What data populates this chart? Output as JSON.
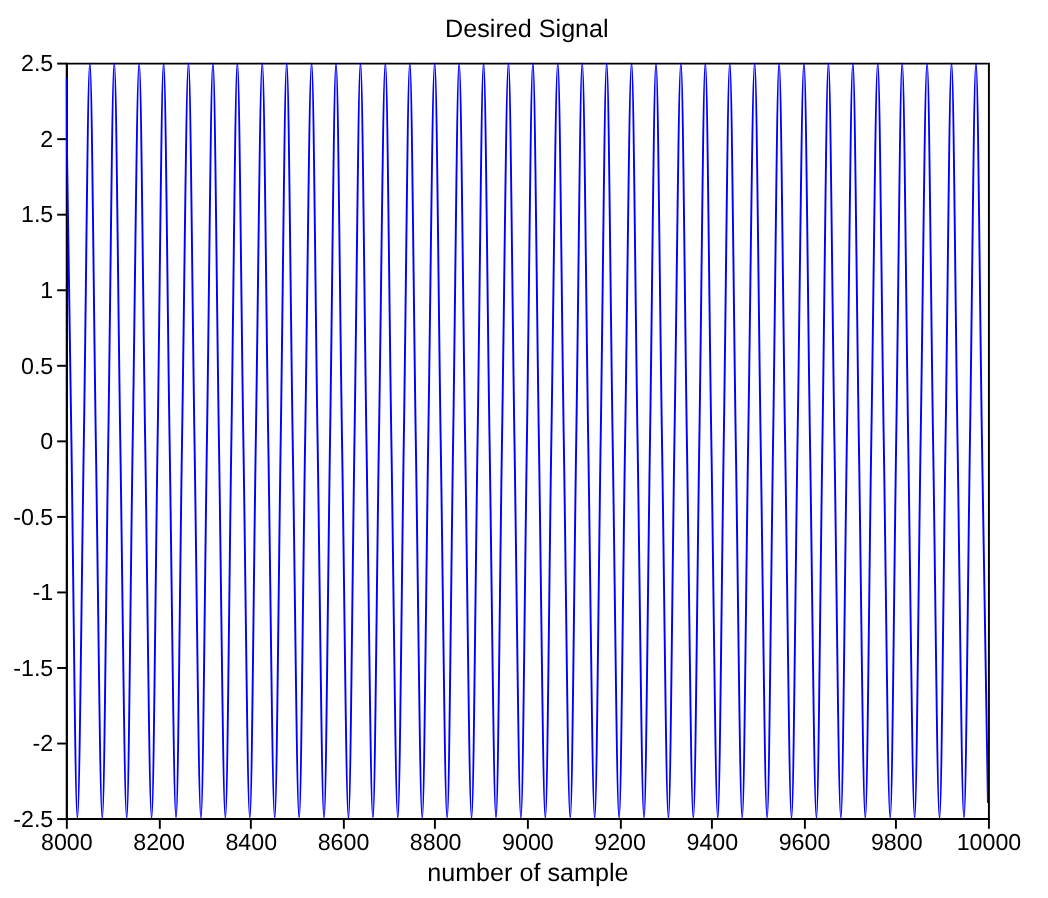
{
  "chart_data": {
    "type": "line",
    "title": "Desired Signal",
    "xlabel": "number of sample",
    "xlim": [
      8000,
      10000
    ],
    "xticks": [
      8000,
      8200,
      8400,
      8600,
      8800,
      9000,
      9200,
      9400,
      9600,
      9800,
      10000
    ],
    "ylim": [
      -2.5,
      2.5
    ],
    "yticks": [
      -2.5,
      -2,
      -1.5,
      -1,
      -0.5,
      0,
      0.5,
      1,
      1.5,
      2,
      2.5
    ],
    "grid": false,
    "legend": false,
    "series": [
      {
        "color": "#0000ff",
        "x": [
          8000,
          8012,
          8025,
          8039,
          8052,
          8065,
          8079,
          8092,
          8105,
          8118,
          8132,
          8145,
          8159,
          8172,
          8186,
          8199,
          8212,
          8225,
          8239,
          8252,
          8266,
          8279,
          8293,
          8306,
          8319,
          8332,
          8346,
          8359,
          8372,
          8385,
          8399,
          8412,
          8426,
          8439,
          8453,
          8466,
          8479,
          8492,
          8506,
          8519,
          8533,
          8546,
          8560,
          8573,
          8586,
          8599,
          8613,
          8626,
          8639,
          8652,
          8666,
          8679,
          8693,
          8706,
          8720,
          8733,
          8746,
          8759,
          8773,
          8786,
          8800,
          8813,
          8827,
          8840,
          8853,
          8866,
          8880,
          8893,
          8906,
          8919,
          8933,
          8946,
          8960,
          8973,
          8987,
          9000,
          9013,
          9026,
          9040,
          9053,
          9067,
          9080,
          9094,
          9107,
          9120,
          9133,
          9147,
          9160,
          9173,
          9186,
          9200,
          9213,
          9227,
          9240,
          9254,
          9267,
          9280,
          9293,
          9307,
          9320,
          9334,
          9347,
          9361,
          9374,
          9387,
          9400,
          9414,
          9427,
          9440,
          9453,
          9467,
          9480,
          9494,
          9507,
          9521,
          9534,
          9547,
          9560,
          9574,
          9587,
          9601,
          9614,
          9628,
          9641,
          9654,
          9667,
          9681,
          9694,
          9707,
          9720,
          9734,
          9747,
          9761,
          9774,
          9788,
          9801,
          9814,
          9827,
          9841,
          9854,
          9868,
          9881,
          9895,
          9908,
          9921,
          9934,
          9948,
          9961,
          9974,
          9987,
          10000
        ],
        "values": [
          2.4,
          0,
          -2.5,
          0,
          2.5,
          0,
          -2.5,
          0,
          2.5,
          0,
          -2.5,
          0,
          2.5,
          0,
          -2.5,
          0,
          2.5,
          0,
          -2.5,
          0,
          2.5,
          0,
          -2.5,
          0,
          2.5,
          0,
          -2.5,
          0,
          2.5,
          0,
          -2.5,
          0,
          2.5,
          0,
          -2.5,
          0,
          2.5,
          0,
          -2.5,
          0,
          2.5,
          0,
          -2.5,
          0,
          2.5,
          0,
          -2.5,
          0,
          2.5,
          0,
          -2.5,
          0,
          2.5,
          0,
          -2.5,
          0,
          2.5,
          0,
          -2.5,
          0,
          2.5,
          0,
          -2.5,
          0,
          2.5,
          0,
          -2.5,
          0,
          2.5,
          0,
          -2.5,
          0,
          2.5,
          0,
          -2.5,
          0,
          2.5,
          0,
          -2.5,
          0,
          2.5,
          0,
          -2.5,
          0,
          2.5,
          0,
          -2.5,
          0,
          2.5,
          0,
          -2.5,
          0,
          2.5,
          0,
          -2.5,
          0,
          2.5,
          0,
          -2.5,
          0,
          2.5,
          0,
          -2.5,
          0,
          2.5,
          0,
          -2.5,
          0,
          2.5,
          0,
          -2.5,
          0,
          2.5,
          0,
          -2.5,
          0,
          2.5,
          0,
          -2.5,
          0,
          2.5,
          0,
          -2.5,
          0,
          2.5,
          0,
          -2.5,
          0,
          2.5,
          0,
          -2.5,
          0,
          2.5,
          0,
          -2.5,
          0,
          2.5,
          0,
          -2.5,
          0,
          2.5,
          0,
          -2.5,
          0,
          2.5,
          0,
          -2.5,
          0,
          2.5,
          0,
          -2.4
        ]
      }
    ]
  }
}
